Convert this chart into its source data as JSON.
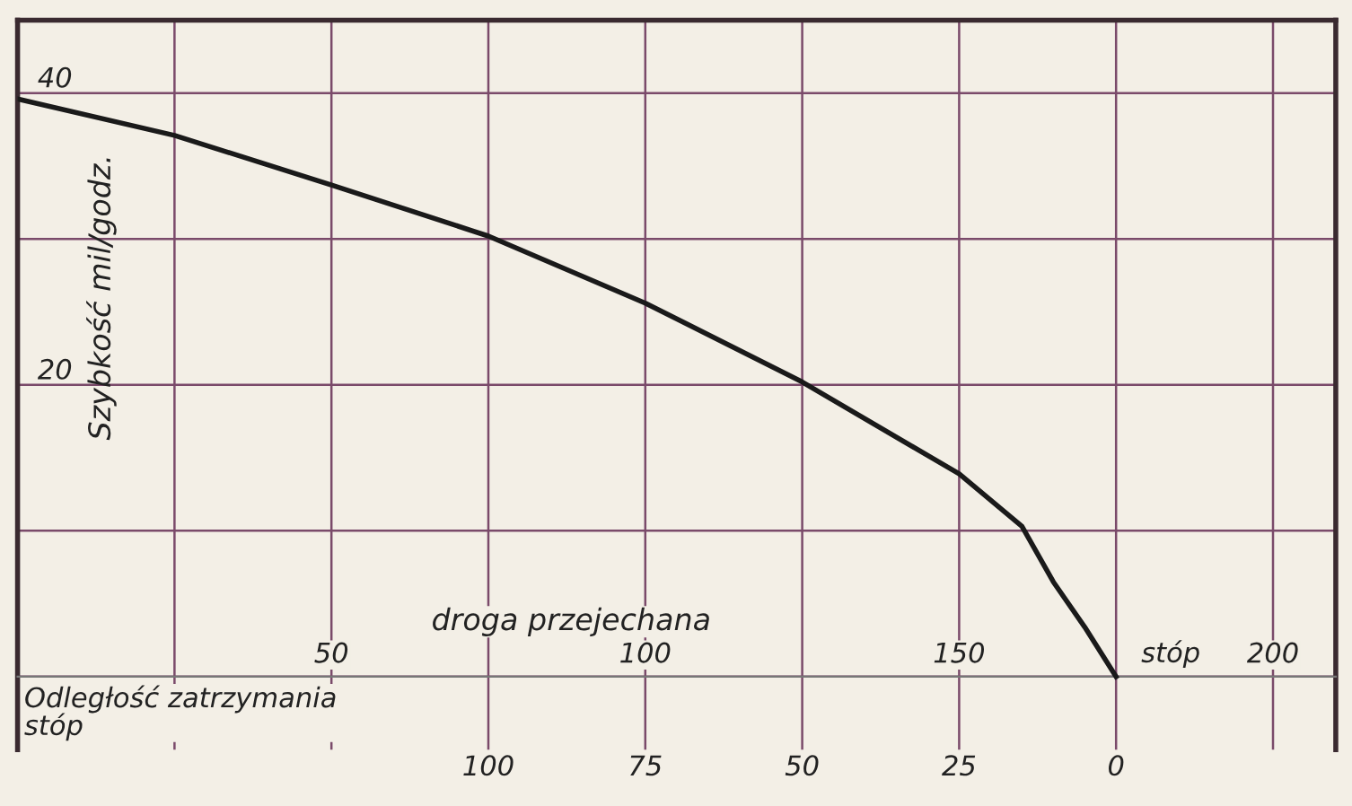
{
  "chart_data": {
    "type": "line",
    "xlabel": "droga przejechana",
    "ylabel": "Szybkość mil/godz.",
    "x2label": "Odległość zatrzymania\nstóp",
    "annotations": [
      "stóp"
    ],
    "series": [
      {
        "color": "#1a1a1a",
        "x": [
          0,
          25,
          50,
          75,
          100,
          125,
          150,
          160,
          165,
          170,
          175
        ],
        "values": [
          39.6,
          37.1,
          33.7,
          30.2,
          25.6,
          20.2,
          13.9,
          10.3,
          6.5,
          3.4,
          0
        ]
      }
    ],
    "xlim": [
      0,
      210
    ],
    "ylim": [
      -5,
      45
    ],
    "xticks": [
      {
        "value": 25,
        "label": null
      },
      50,
      {
        "value": 75,
        "label": null
      },
      100,
      {
        "value": 125,
        "label": null
      },
      150,
      {
        "value": 175,
        "label": null
      },
      200
    ],
    "yticks": [
      {
        "value": 0,
        "label": null
      },
      {
        "value": 10,
        "label": null
      },
      20,
      {
        "value": 30,
        "label": null
      },
      40
    ],
    "x2lim": [
      175,
      -35
    ],
    "x2ticks": [
      100,
      75,
      50,
      25,
      0
    ],
    "grid": true,
    "marker": "none",
    "line_style": "solid"
  }
}
